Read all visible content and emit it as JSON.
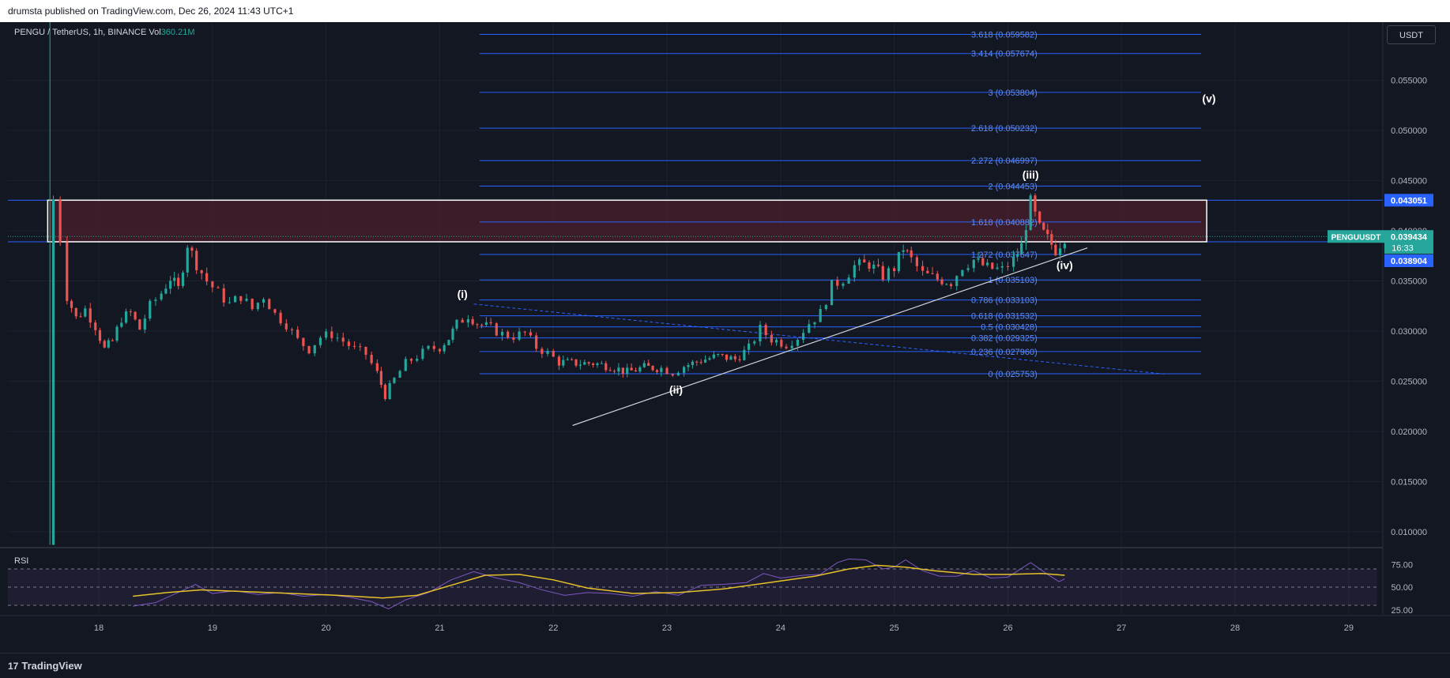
{
  "header": {
    "publisher_text": "drumsta published on TradingView.com, Dec 26, 2024 11:43 UTC+1"
  },
  "legend": {
    "symbol": "PENGU / TetherUS, 1h, BINANCE",
    "vol_label": "Vol",
    "vol_value": "360.21M"
  },
  "currency_button": "USDT",
  "footer": {
    "brand": "TradingView",
    "logo_glyph": "17"
  },
  "rsi": {
    "label": "RSI",
    "levels": [
      "75.00",
      "50.00",
      "25.00"
    ]
  },
  "colors": {
    "background": "#131722",
    "bull": "#26a69a",
    "bear": "#ef5350",
    "fib": "#2962ff",
    "zone": "#4a1f2b",
    "rsi_line": "#7e57c2",
    "rsi_ma": "#e6c229"
  },
  "price_axis": {
    "ticks": [
      "0.055000",
      "0.050000",
      "0.045000",
      "0.040000",
      "0.035000",
      "0.030000",
      "0.025000",
      "0.020000",
      "0.015000",
      "0.010000"
    ],
    "tag_zone_top": "0.043051",
    "tag_symbol": "PENGUUSDT",
    "tag_last_price": "0.039434",
    "tag_countdown": "16:33",
    "tag_zone_bottom": "0.038904"
  },
  "time_axis": {
    "ticks": [
      "18",
      "19",
      "20",
      "21",
      "22",
      "23",
      "24",
      "25",
      "26",
      "27",
      "28",
      "29"
    ]
  },
  "fib_levels": [
    {
      "label": "3.618 (0.059582)",
      "price": 0.059582
    },
    {
      "label": "3.414 (0.057674)",
      "price": 0.057674
    },
    {
      "label": "3 (0.053804)",
      "price": 0.053804
    },
    {
      "label": "2.618 (0.050232)",
      "price": 0.050232
    },
    {
      "label": "2.272 (0.046997)",
      "price": 0.046997
    },
    {
      "label": "2 (0.044453)",
      "price": 0.044453
    },
    {
      "label": "1.618 (0.040882)",
      "price": 0.040882
    },
    {
      "label": "1.272 (0.037647)",
      "price": 0.037647
    },
    {
      "label": "1 (0.035103)",
      "price": 0.035103
    },
    {
      "label": "0.786 (0.033103)",
      "price": 0.033103
    },
    {
      "label": "0.618 (0.031532)",
      "price": 0.031532
    },
    {
      "label": "0.5 (0.030428)",
      "price": 0.030428
    },
    {
      "label": "0.382 (0.029325)",
      "price": 0.029325
    },
    {
      "label": "0.236 (0.027960)",
      "price": 0.02796
    },
    {
      "label": "0 (0.025753)",
      "price": 0.025753
    }
  ],
  "wave_labels": [
    {
      "text": "(i)",
      "day": 21.2,
      "price": 0.0333
    },
    {
      "text": "(ii)",
      "day": 23.08,
      "price": 0.0238
    },
    {
      "text": "(iii)",
      "day": 26.2,
      "price": 0.0452
    },
    {
      "text": "(iv)",
      "day": 26.5,
      "price": 0.0362
    },
    {
      "text": "(v)",
      "day": 27.77,
      "price": 0.0528
    }
  ],
  "chart_data": {
    "type": "candlestick",
    "symbol": "PENGU / TetherUS",
    "interval": "1h",
    "exchange": "BINANCE",
    "y_scale": "linear",
    "ylim": [
      0.0085,
      0.0608
    ],
    "xlim": [
      17.2,
      29.3
    ],
    "x_ticks": [
      18,
      19,
      20,
      21,
      22,
      23,
      24,
      25,
      26,
      27,
      28,
      29
    ],
    "y_ticks": [
      0.055,
      0.05,
      0.045,
      0.04,
      0.035,
      0.03,
      0.025,
      0.02,
      0.015,
      0.01
    ],
    "grid": true,
    "last_price": 0.039434,
    "x_unit": "day of December 2024",
    "price_path": [
      [
        17.55,
        0.0087
      ],
      [
        17.6,
        0.0431
      ],
      [
        17.66,
        0.0392
      ],
      [
        17.72,
        0.0335
      ],
      [
        17.8,
        0.0313
      ],
      [
        17.88,
        0.0322
      ],
      [
        17.97,
        0.0305
      ],
      [
        18.05,
        0.0282
      ],
      [
        18.12,
        0.029
      ],
      [
        18.2,
        0.0313
      ],
      [
        18.28,
        0.0318
      ],
      [
        18.36,
        0.0302
      ],
      [
        18.45,
        0.0325
      ],
      [
        18.55,
        0.0338
      ],
      [
        18.63,
        0.0353
      ],
      [
        18.7,
        0.0342
      ],
      [
        18.78,
        0.0387
      ],
      [
        18.86,
        0.0367
      ],
      [
        18.95,
        0.035
      ],
      [
        19.05,
        0.0338
      ],
      [
        19.15,
        0.0327
      ],
      [
        19.25,
        0.0335
      ],
      [
        19.35,
        0.0322
      ],
      [
        19.45,
        0.0335
      ],
      [
        19.55,
        0.0317
      ],
      [
        19.65,
        0.0307
      ],
      [
        19.75,
        0.0291
      ],
      [
        19.85,
        0.0282
      ],
      [
        19.95,
        0.0294
      ],
      [
        20.05,
        0.0297
      ],
      [
        20.15,
        0.029
      ],
      [
        20.25,
        0.0282
      ],
      [
        20.35,
        0.0277
      ],
      [
        20.45,
        0.0258
      ],
      [
        20.52,
        0.0236
      ],
      [
        20.6,
        0.0252
      ],
      [
        20.7,
        0.0268
      ],
      [
        20.8,
        0.0275
      ],
      [
        20.9,
        0.0282
      ],
      [
        21.0,
        0.0284
      ],
      [
        21.08,
        0.0293
      ],
      [
        21.15,
        0.0307
      ],
      [
        21.25,
        0.0316
      ],
      [
        21.33,
        0.0308
      ],
      [
        21.45,
        0.0303
      ],
      [
        21.55,
        0.0297
      ],
      [
        21.65,
        0.0295
      ],
      [
        21.75,
        0.0298
      ],
      [
        21.85,
        0.0284
      ],
      [
        21.95,
        0.0278
      ],
      [
        22.05,
        0.0269
      ],
      [
        22.2,
        0.0268
      ],
      [
        22.35,
        0.0268
      ],
      [
        22.5,
        0.0265
      ],
      [
        22.65,
        0.0259
      ],
      [
        22.8,
        0.0264
      ],
      [
        22.95,
        0.0263
      ],
      [
        23.05,
        0.0259
      ],
      [
        23.15,
        0.0265
      ],
      [
        23.3,
        0.0271
      ],
      [
        23.45,
        0.0275
      ],
      [
        23.6,
        0.0272
      ],
      [
        23.72,
        0.0283
      ],
      [
        23.82,
        0.0302
      ],
      [
        23.92,
        0.0292
      ],
      [
        24.05,
        0.0287
      ],
      [
        24.15,
        0.0294
      ],
      [
        24.25,
        0.0308
      ],
      [
        24.35,
        0.0318
      ],
      [
        24.45,
        0.0345
      ],
      [
        24.55,
        0.0352
      ],
      [
        24.65,
        0.0365
      ],
      [
        24.78,
        0.0367
      ],
      [
        24.9,
        0.0355
      ],
      [
        25.0,
        0.0363
      ],
      [
        25.08,
        0.0383
      ],
      [
        25.15,
        0.0371
      ],
      [
        25.25,
        0.0357
      ],
      [
        25.38,
        0.0352
      ],
      [
        25.5,
        0.0349
      ],
      [
        25.6,
        0.0365
      ],
      [
        25.7,
        0.0371
      ],
      [
        25.82,
        0.0363
      ],
      [
        25.95,
        0.0361
      ],
      [
        26.05,
        0.0371
      ],
      [
        26.12,
        0.0385
      ],
      [
        26.2,
        0.0428
      ],
      [
        26.28,
        0.0402
      ],
      [
        26.35,
        0.0392
      ],
      [
        26.42,
        0.0381
      ],
      [
        26.5,
        0.0394
      ]
    ],
    "series": [
      {
        "name": "RSI",
        "values": [
          [
            18.3,
            29
          ],
          [
            18.5,
            33
          ],
          [
            18.75,
            47
          ],
          [
            18.85,
            53
          ],
          [
            19.0,
            43
          ],
          [
            19.2,
            46
          ],
          [
            19.4,
            42
          ],
          [
            19.6,
            44
          ],
          [
            19.8,
            40
          ],
          [
            20.0,
            42
          ],
          [
            20.2,
            39
          ],
          [
            20.4,
            34
          ],
          [
            20.55,
            26
          ],
          [
            20.7,
            36
          ],
          [
            20.9,
            44
          ],
          [
            21.1,
            58
          ],
          [
            21.3,
            67
          ],
          [
            21.5,
            60
          ],
          [
            21.7,
            55
          ],
          [
            21.9,
            47
          ],
          [
            22.1,
            41
          ],
          [
            22.3,
            44
          ],
          [
            22.5,
            43
          ],
          [
            22.7,
            40
          ],
          [
            22.9,
            45
          ],
          [
            23.1,
            41
          ],
          [
            23.3,
            52
          ],
          [
            23.5,
            53
          ],
          [
            23.7,
            55
          ],
          [
            23.85,
            65
          ],
          [
            24.0,
            60
          ],
          [
            24.2,
            63
          ],
          [
            24.35,
            64
          ],
          [
            24.5,
            77
          ],
          [
            24.6,
            81
          ],
          [
            24.75,
            80
          ],
          [
            24.9,
            70
          ],
          [
            25.0,
            72
          ],
          [
            25.1,
            80
          ],
          [
            25.25,
            68
          ],
          [
            25.4,
            62
          ],
          [
            25.55,
            62
          ],
          [
            25.7,
            68
          ],
          [
            25.85,
            60
          ],
          [
            26.0,
            61
          ],
          [
            26.2,
            77
          ],
          [
            26.35,
            64
          ],
          [
            26.45,
            56
          ],
          [
            26.5,
            59
          ]
        ]
      },
      {
        "name": "RSI-based MA",
        "values": [
          [
            18.3,
            40
          ],
          [
            18.6,
            44
          ],
          [
            18.9,
            47
          ],
          [
            19.3,
            45
          ],
          [
            19.7,
            43
          ],
          [
            20.1,
            41
          ],
          [
            20.5,
            38
          ],
          [
            20.8,
            41
          ],
          [
            21.1,
            52
          ],
          [
            21.4,
            63
          ],
          [
            21.7,
            64
          ],
          [
            22.0,
            58
          ],
          [
            22.3,
            49
          ],
          [
            22.7,
            43
          ],
          [
            23.1,
            44
          ],
          [
            23.5,
            48
          ],
          [
            23.9,
            55
          ],
          [
            24.3,
            62
          ],
          [
            24.6,
            70
          ],
          [
            24.85,
            74
          ],
          [
            25.1,
            72
          ],
          [
            25.35,
            68
          ],
          [
            25.7,
            64
          ],
          [
            26.0,
            64
          ],
          [
            26.3,
            65
          ],
          [
            26.5,
            63
          ]
        ]
      }
    ]
  }
}
